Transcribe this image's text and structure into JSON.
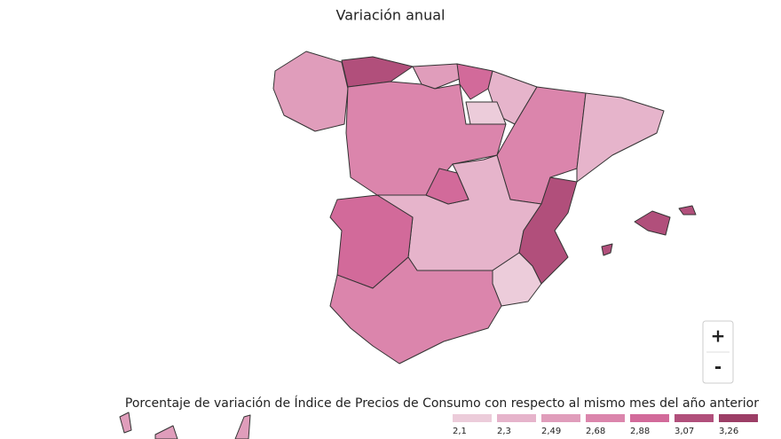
{
  "title": "Variación anual",
  "legend": {
    "title": "Porcentaje de variación de Índice de Precios de Consumo con respecto al mismo mes del año anterior",
    "items": [
      {
        "label": "2,1",
        "color": "#ecccda"
      },
      {
        "label": "2,3",
        "color": "#e6b4cb"
      },
      {
        "label": "2,49",
        "color": "#e09dbb"
      },
      {
        "label": "2,68",
        "color": "#db85ac"
      },
      {
        "label": "2,88",
        "color": "#d26a9a"
      },
      {
        "label": "3,07",
        "color": "#b14f7b"
      },
      {
        "label": "3,26",
        "color": "#9c3e66"
      }
    ]
  },
  "zoom": {
    "in": "+",
    "out": "-"
  }
}
